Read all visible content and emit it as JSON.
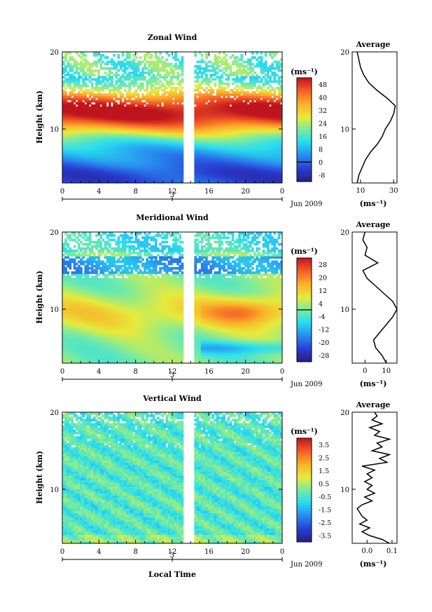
{
  "figure": {
    "date_label": "Jun 2009",
    "xlabel": "Local Time",
    "unit_label": "(ms⁻¹)"
  },
  "chart_data": [
    {
      "type": "heatmap",
      "title": "Zonal Wind",
      "ylabel": "Height (km)",
      "xticks": [
        "0",
        "4",
        "8",
        "12",
        "16",
        "20",
        "0"
      ],
      "xlim": [
        0,
        24
      ],
      "day_tick": "3",
      "ylim": [
        3,
        20
      ],
      "yticks": [
        10,
        20
      ],
      "colorbar_ticks": [
        "48",
        "40",
        "32",
        "24",
        "16",
        "8",
        "0",
        "-8"
      ],
      "colorbar_range": [
        -12,
        52
      ],
      "profile": {
        "title": "Average",
        "xticks": [
          "10",
          "30"
        ],
        "xlim": [
          5,
          32
        ],
        "heights": [
          3,
          4,
          5,
          6,
          7,
          8,
          9,
          10,
          11,
          12,
          13,
          14,
          15,
          16,
          17,
          18,
          19,
          20
        ],
        "values": [
          8,
          9,
          11,
          13,
          16,
          20,
          23,
          25,
          28,
          30,
          31,
          26,
          20,
          15,
          12,
          10,
          9,
          8
        ]
      }
    },
    {
      "type": "heatmap",
      "title": "Meridional Wind",
      "ylabel": "Height (km)",
      "xticks": [
        "0",
        "4",
        "8",
        "12",
        "16",
        "20",
        "0"
      ],
      "xlim": [
        0,
        24
      ],
      "day_tick": "3",
      "ylim": [
        3,
        20
      ],
      "yticks": [
        10,
        20
      ],
      "colorbar_ticks": [
        "28",
        "20",
        "12",
        "4",
        "-4",
        "-12",
        "-20",
        "-28"
      ],
      "colorbar_range": [
        -32,
        32
      ],
      "profile": {
        "title": "Average",
        "xticks": [
          "0",
          "10"
        ],
        "xlim": [
          -6,
          15
        ],
        "heights": [
          3,
          4,
          5,
          6,
          7,
          8,
          9,
          10,
          11,
          12,
          13,
          14,
          15,
          16,
          17,
          18,
          19,
          20
        ],
        "values": [
          10,
          8,
          5,
          4,
          7,
          10,
          13,
          15,
          13,
          9,
          5,
          1,
          -1,
          6,
          0,
          1,
          -1,
          0
        ]
      }
    },
    {
      "type": "heatmap",
      "title": "Vertical Wind",
      "ylabel": "Height (km)",
      "xticks": [
        "0",
        "4",
        "8",
        "12",
        "16",
        "20",
        "0"
      ],
      "xlim": [
        0,
        24
      ],
      "day_tick": "3",
      "ylim": [
        3,
        20
      ],
      "yticks": [
        10,
        20
      ],
      "colorbar_ticks": [
        "3.5",
        "2.5",
        "1.5",
        "0.5",
        "-0.5",
        "-1.5",
        "-2.5",
        "-3.5"
      ],
      "colorbar_range": [
        -4,
        4
      ],
      "profile": {
        "title": "Average",
        "xticks": [
          "0.0",
          "0.1"
        ],
        "xlim": [
          -0.06,
          0.12
        ],
        "heights": [
          3,
          3.5,
          4,
          4.5,
          5,
          5.5,
          6,
          6.5,
          7,
          7.5,
          8,
          8.5,
          9,
          9.5,
          10,
          10.5,
          11,
          11.5,
          12,
          12.5,
          13,
          13.5,
          14,
          14.5,
          15,
          15.5,
          16,
          16.5,
          17,
          17.5,
          18,
          18.5,
          19,
          19.5,
          20
        ],
        "values": [
          0.09,
          0.06,
          0.01,
          -0.02,
          0.01,
          -0.03,
          0.0,
          -0.02,
          -0.03,
          -0.04,
          -0.02,
          0.02,
          -0.01,
          0.03,
          0.0,
          0.02,
          -0.01,
          0.02,
          0.0,
          0.03,
          -0.02,
          0.08,
          0.05,
          0.09,
          0.02,
          0.06,
          0.04,
          0.09,
          0.03,
          0.05,
          0.01,
          0.06,
          0.02,
          0.04,
          0.03
        ]
      }
    }
  ]
}
